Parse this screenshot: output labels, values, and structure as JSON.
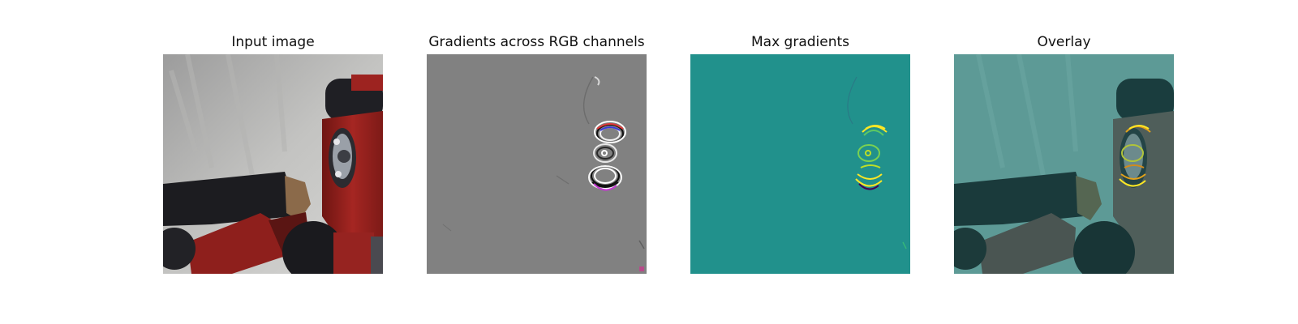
{
  "figure": {
    "panels": [
      {
        "title": "Input image"
      },
      {
        "title": "Gradients across RGB channels"
      },
      {
        "title": "Max gradients"
      },
      {
        "title": "Overlay"
      }
    ]
  },
  "colors": {
    "background": "#ffffff",
    "gradient_gray": "#818181",
    "max_gradient_teal": "#21918c",
    "highlight_yellow": "#fde725",
    "robot_red": "#8e1f1c",
    "sleeve_black": "#1c1c20"
  }
}
